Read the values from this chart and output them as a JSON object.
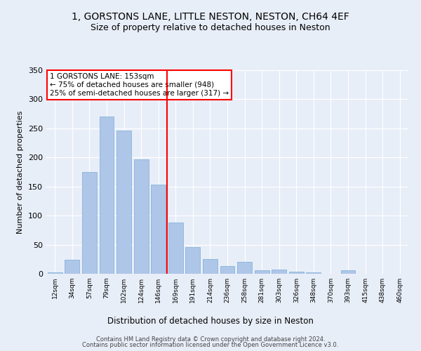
{
  "title1": "1, GORSTONS LANE, LITTLE NESTON, NESTON, CH64 4EF",
  "title2": "Size of property relative to detached houses in Neston",
  "xlabel": "Distribution of detached houses by size in Neston",
  "ylabel": "Number of detached properties",
  "footer1": "Contains HM Land Registry data © Crown copyright and database right 2024.",
  "footer2": "Contains public sector information licensed under the Open Government Licence v3.0.",
  "annotation_line1": "1 GORSTONS LANE: 153sqm",
  "annotation_line2": "← 75% of detached houses are smaller (948)",
  "annotation_line3": "25% of semi-detached houses are larger (317) →",
  "bar_labels": [
    "12sqm",
    "34sqm",
    "57sqm",
    "79sqm",
    "102sqm",
    "124sqm",
    "146sqm",
    "169sqm",
    "191sqm",
    "214sqm",
    "236sqm",
    "258sqm",
    "281sqm",
    "303sqm",
    "326sqm",
    "348sqm",
    "370sqm",
    "393sqm",
    "415sqm",
    "438sqm",
    "460sqm"
  ],
  "bar_values": [
    2,
    24,
    175,
    270,
    246,
    197,
    153,
    88,
    46,
    25,
    13,
    20,
    6,
    7,
    4,
    2,
    0,
    6,
    0,
    0,
    0
  ],
  "bar_color": "#aec6e8",
  "bar_edge_color": "#7aadd4",
  "vline_x": 6.5,
  "vline_color": "red",
  "background_color": "#e8eef8",
  "annotation_box_color": "white",
  "annotation_box_edge": "red",
  "ylim": [
    0,
    350
  ],
  "yticks": [
    0,
    50,
    100,
    150,
    200,
    250,
    300,
    350
  ],
  "grid_color": "white",
  "title_fontsize": 10,
  "subtitle_fontsize": 9
}
